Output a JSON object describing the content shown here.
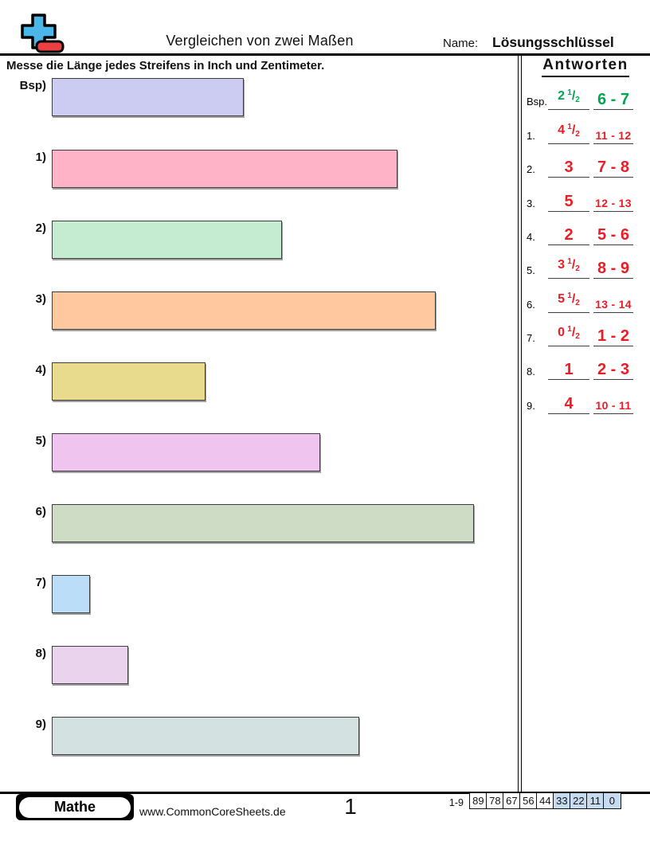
{
  "header": {
    "title": "Vergleichen von zwei Maßen",
    "name_label": "Name:",
    "key_label": "Lösungsschlüssel"
  },
  "instruction": "Messe die Länge jedes Streifens in Inch und Zentimeter.",
  "logo": {
    "plus_color": "#4BB7E8",
    "base_color": "#EC3F43"
  },
  "colors": {
    "answer_red": "#ED1C24",
    "answer_green": "#00A651",
    "score_highlight": "#C6DBF0"
  },
  "strips": [
    {
      "label": "Bsp)",
      "length_inches": 2.5,
      "color": "#CCCCF2"
    },
    {
      "label": "1)",
      "length_inches": 4.5,
      "color": "#FFB3C6"
    },
    {
      "label": "2)",
      "length_inches": 3,
      "color": "#C5EBD0"
    },
    {
      "label": "3)",
      "length_inches": 5,
      "color": "#FFC89E"
    },
    {
      "label": "4)",
      "length_inches": 2,
      "color": "#E9DB8D"
    },
    {
      "label": "5)",
      "length_inches": 3.5,
      "color": "#EFC5EF"
    },
    {
      "label": "6)",
      "length_inches": 5.5,
      "color": "#CFDCC5"
    },
    {
      "label": "7)",
      "length_inches": 0.5,
      "color": "#BBDDF8"
    },
    {
      "label": "8)",
      "length_inches": 1,
      "color": "#EAD3EC"
    },
    {
      "label": "9)",
      "length_inches": 4,
      "color": "#D3E2E1"
    }
  ],
  "answers": {
    "heading": "Antworten",
    "rows": [
      {
        "label": "Bsp.",
        "inches_whole": "2",
        "inches_frac": "1/2",
        "cm_range": "6 - 7",
        "color": "#00A651"
      },
      {
        "label": "1.",
        "inches_whole": "4",
        "inches_frac": "1/2",
        "cm_range": "11 - 12",
        "color": "#ED1C24"
      },
      {
        "label": "2.",
        "inches_whole": "3",
        "inches_frac": "",
        "cm_range": "7 - 8",
        "color": "#ED1C24"
      },
      {
        "label": "3.",
        "inches_whole": "5",
        "inches_frac": "",
        "cm_range": "12 - 13",
        "color": "#ED1C24"
      },
      {
        "label": "4.",
        "inches_whole": "2",
        "inches_frac": "",
        "cm_range": "5 - 6",
        "color": "#ED1C24"
      },
      {
        "label": "5.",
        "inches_whole": "3",
        "inches_frac": "1/2",
        "cm_range": "8 - 9",
        "color": "#ED1C24"
      },
      {
        "label": "6.",
        "inches_whole": "5",
        "inches_frac": "1/2",
        "cm_range": "13 - 14",
        "color": "#ED1C24"
      },
      {
        "label": "7.",
        "inches_whole": "0",
        "inches_frac": "1/2",
        "cm_range": "1 - 2",
        "color": "#ED1C24"
      },
      {
        "label": "8.",
        "inches_whole": "1",
        "inches_frac": "",
        "cm_range": "2 - 3",
        "color": "#ED1C24"
      },
      {
        "label": "9.",
        "inches_whole": "4",
        "inches_frac": "",
        "cm_range": "10 - 11",
        "color": "#ED1C24"
      }
    ]
  },
  "footer": {
    "subject_badge": "Mathe",
    "website": "www.CommonCoreSheets.de",
    "page_number": "1",
    "score_label": "1-9",
    "score_cells": [
      {
        "value": "89",
        "highlighted": false
      },
      {
        "value": "78",
        "highlighted": false
      },
      {
        "value": "67",
        "highlighted": false
      },
      {
        "value": "56",
        "highlighted": false
      },
      {
        "value": "44",
        "highlighted": false
      },
      {
        "value": "33",
        "highlighted": true
      },
      {
        "value": "22",
        "highlighted": true
      },
      {
        "value": "11",
        "highlighted": true
      },
      {
        "value": "0",
        "highlighted": true
      }
    ]
  }
}
